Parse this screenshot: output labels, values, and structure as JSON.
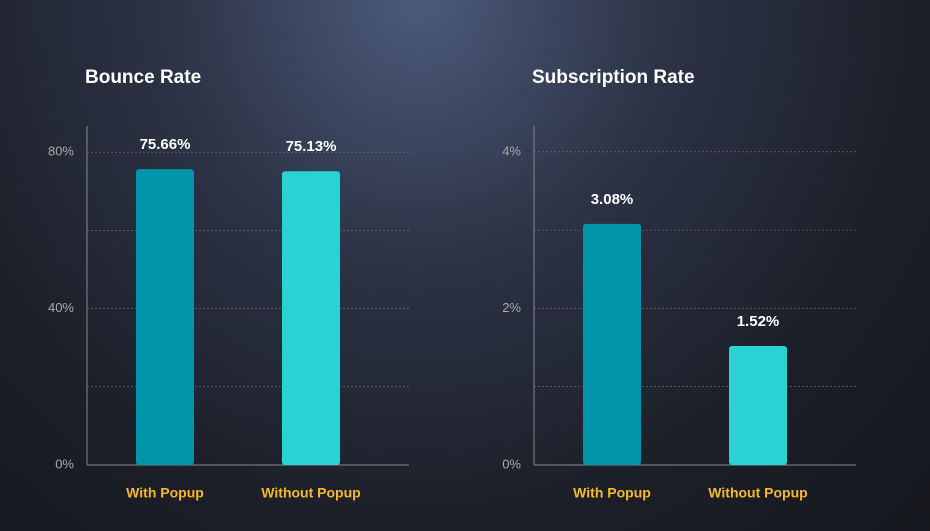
{
  "chart_data": [
    {
      "type": "bar",
      "title": "Bounce Rate",
      "categories": [
        "With Popup",
        "Without Popup"
      ],
      "values": [
        75.66,
        75.13
      ],
      "value_labels": [
        "75.66%",
        "75.13%"
      ],
      "colors": [
        "#0095ab",
        "#29d3d3"
      ],
      "ylim": [
        0,
        86.7
      ],
      "yticks": [
        {
          "value": 0,
          "label": "0%"
        },
        {
          "value": 40,
          "label": "40%"
        },
        {
          "value": 80,
          "label": "80%"
        }
      ],
      "minor_yticks": [
        20,
        60
      ],
      "grid": true
    },
    {
      "type": "bar",
      "title": "Subscription Rate",
      "categories": [
        "With Popup",
        "Without Popup"
      ],
      "values": [
        3.08,
        1.52
      ],
      "value_labels": [
        "3.08%",
        "1.52%"
      ],
      "colors": [
        "#0095ab",
        "#29d3d3"
      ],
      "ylim": [
        0,
        4.33
      ],
      "yticks": [
        {
          "value": 0,
          "label": "0%"
        },
        {
          "value": 2,
          "label": "2%"
        },
        {
          "value": 4,
          "label": "4%"
        }
      ],
      "minor_yticks": [
        1,
        3
      ],
      "grid": true
    }
  ]
}
